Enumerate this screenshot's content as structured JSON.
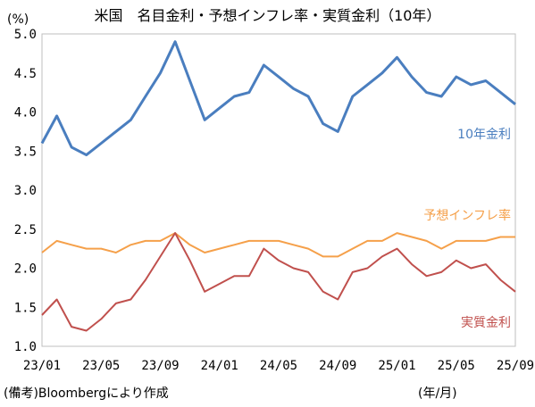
{
  "chart_data": {
    "type": "line",
    "title": "米国　名目金利・予想インフレ率・実質金利（10年）",
    "unit": "(%)",
    "x_unit": "(年/月)",
    "source": "(備考)Bloombergにより作成",
    "x_ticks": [
      "23/01",
      "23/05",
      "23/09",
      "24/01",
      "24/05",
      "24/09",
      "25/01",
      "25/05",
      "25/09"
    ],
    "y_ticks": [
      "1.0",
      "1.5",
      "2.0",
      "2.5",
      "3.0",
      "3.5",
      "4.0",
      "4.5",
      "5.0"
    ],
    "ylim": [
      1.0,
      5.0
    ],
    "grid": false,
    "x": [
      "23/01",
      "23/02",
      "23/03",
      "23/04",
      "23/05",
      "23/06",
      "23/07",
      "23/08",
      "23/09",
      "23/10",
      "23/11",
      "23/12",
      "24/01",
      "24/02",
      "24/03",
      "24/04",
      "24/05",
      "24/06",
      "24/07",
      "24/08",
      "24/09",
      "24/10",
      "24/11",
      "24/12",
      "25/01",
      "25/02",
      "25/03",
      "25/04",
      "25/05",
      "25/06",
      "25/07",
      "25/08",
      "25/09"
    ],
    "series": [
      {
        "name": "10年金利",
        "color": "#4a7ebf",
        "values": [
          3.6,
          3.95,
          3.55,
          3.45,
          3.6,
          3.75,
          3.9,
          4.2,
          4.5,
          4.9,
          4.4,
          3.9,
          4.05,
          4.2,
          4.25,
          4.6,
          4.45,
          4.3,
          4.2,
          3.85,
          3.75,
          4.2,
          4.35,
          4.5,
          4.7,
          4.45,
          4.25,
          4.2,
          4.45,
          4.35,
          4.4,
          4.25,
          4.1
        ]
      },
      {
        "name": "予想インフレ率",
        "color": "#f5a04a",
        "values": [
          2.2,
          2.35,
          2.3,
          2.25,
          2.25,
          2.2,
          2.3,
          2.35,
          2.35,
          2.45,
          2.3,
          2.2,
          2.25,
          2.3,
          2.35,
          2.35,
          2.35,
          2.3,
          2.25,
          2.15,
          2.15,
          2.25,
          2.35,
          2.35,
          2.45,
          2.4,
          2.35,
          2.25,
          2.35,
          2.35,
          2.35,
          2.4,
          2.4
        ]
      },
      {
        "name": "実質金利",
        "color": "#c0504d",
        "values": [
          1.4,
          1.6,
          1.25,
          1.2,
          1.35,
          1.55,
          1.6,
          1.85,
          2.15,
          2.45,
          2.1,
          1.7,
          1.8,
          1.9,
          1.9,
          2.25,
          2.1,
          2.0,
          1.95,
          1.7,
          1.6,
          1.95,
          2.0,
          2.15,
          2.25,
          2.05,
          1.9,
          1.95,
          2.1,
          2.0,
          2.05,
          1.85,
          1.7
        ]
      }
    ]
  }
}
